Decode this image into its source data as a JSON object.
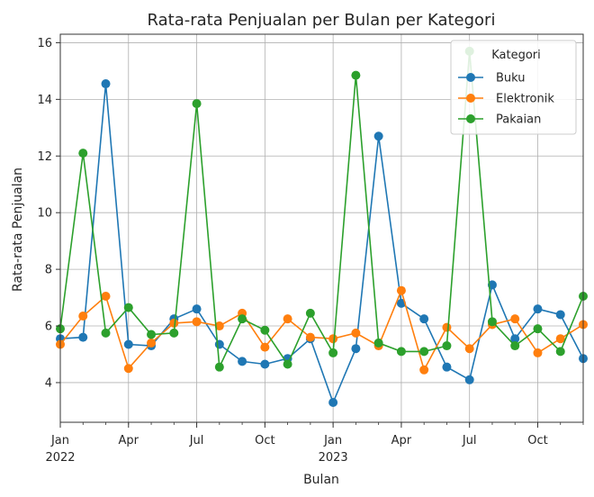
{
  "chart_data": {
    "type": "line",
    "title": "Rata-rata Penjualan per Bulan per Kategori",
    "xlabel": "Bulan",
    "ylabel": "Rata-rata Penjualan",
    "ylim": [
      2.6,
      16.3
    ],
    "yticks": [
      4,
      6,
      8,
      10,
      12,
      14,
      16
    ],
    "grid": true,
    "x": [
      "2022-01",
      "2022-02",
      "2022-03",
      "2022-04",
      "2022-05",
      "2022-06",
      "2022-07",
      "2022-08",
      "2022-09",
      "2022-10",
      "2022-11",
      "2022-12",
      "2023-01",
      "2023-02",
      "2023-03",
      "2023-04",
      "2023-05",
      "2023-06",
      "2023-07",
      "2023-08",
      "2023-09",
      "2023-10",
      "2023-11",
      "2023-12"
    ],
    "xtick_labels": [
      {
        "month_index": 0,
        "label": "Jan",
        "sublabel": "2022"
      },
      {
        "month_index": 3,
        "label": "Apr",
        "sublabel": ""
      },
      {
        "month_index": 6,
        "label": "Jul",
        "sublabel": ""
      },
      {
        "month_index": 9,
        "label": "Oct",
        "sublabel": ""
      },
      {
        "month_index": 12,
        "label": "Jan",
        "sublabel": "2023"
      },
      {
        "month_index": 15,
        "label": "Apr",
        "sublabel": ""
      },
      {
        "month_index": 18,
        "label": "Jul",
        "sublabel": ""
      },
      {
        "month_index": 21,
        "label": "Oct",
        "sublabel": ""
      }
    ],
    "legend": {
      "title": "Kategori",
      "location": "upper-right"
    },
    "series": [
      {
        "name": "Buku",
        "color": "#1f77b4",
        "values": [
          5.55,
          5.6,
          14.55,
          5.35,
          5.3,
          6.25,
          6.6,
          5.35,
          4.75,
          4.65,
          4.85,
          5.55,
          3.3,
          5.2,
          12.7,
          6.8,
          6.25,
          4.55,
          4.1,
          7.45,
          5.55,
          6.6,
          6.4,
          4.85
        ]
      },
      {
        "name": "Elektronik",
        "color": "#ff7f0e",
        "values": [
          5.35,
          6.35,
          7.05,
          4.5,
          5.4,
          6.1,
          6.15,
          6.0,
          6.45,
          5.25,
          6.25,
          5.6,
          5.55,
          5.75,
          5.3,
          7.25,
          4.45,
          5.95,
          5.2,
          6.05,
          6.25,
          5.05,
          5.55,
          6.05
        ]
      },
      {
        "name": "Pakaian",
        "color": "#2ca02c",
        "values": [
          5.9,
          12.1,
          5.75,
          6.65,
          5.7,
          5.75,
          13.85,
          4.55,
          6.25,
          5.85,
          4.65,
          6.45,
          5.05,
          14.85,
          5.4,
          5.1,
          5.1,
          5.3,
          15.7,
          6.15,
          5.3,
          5.9,
          5.1,
          7.05
        ]
      }
    ]
  }
}
